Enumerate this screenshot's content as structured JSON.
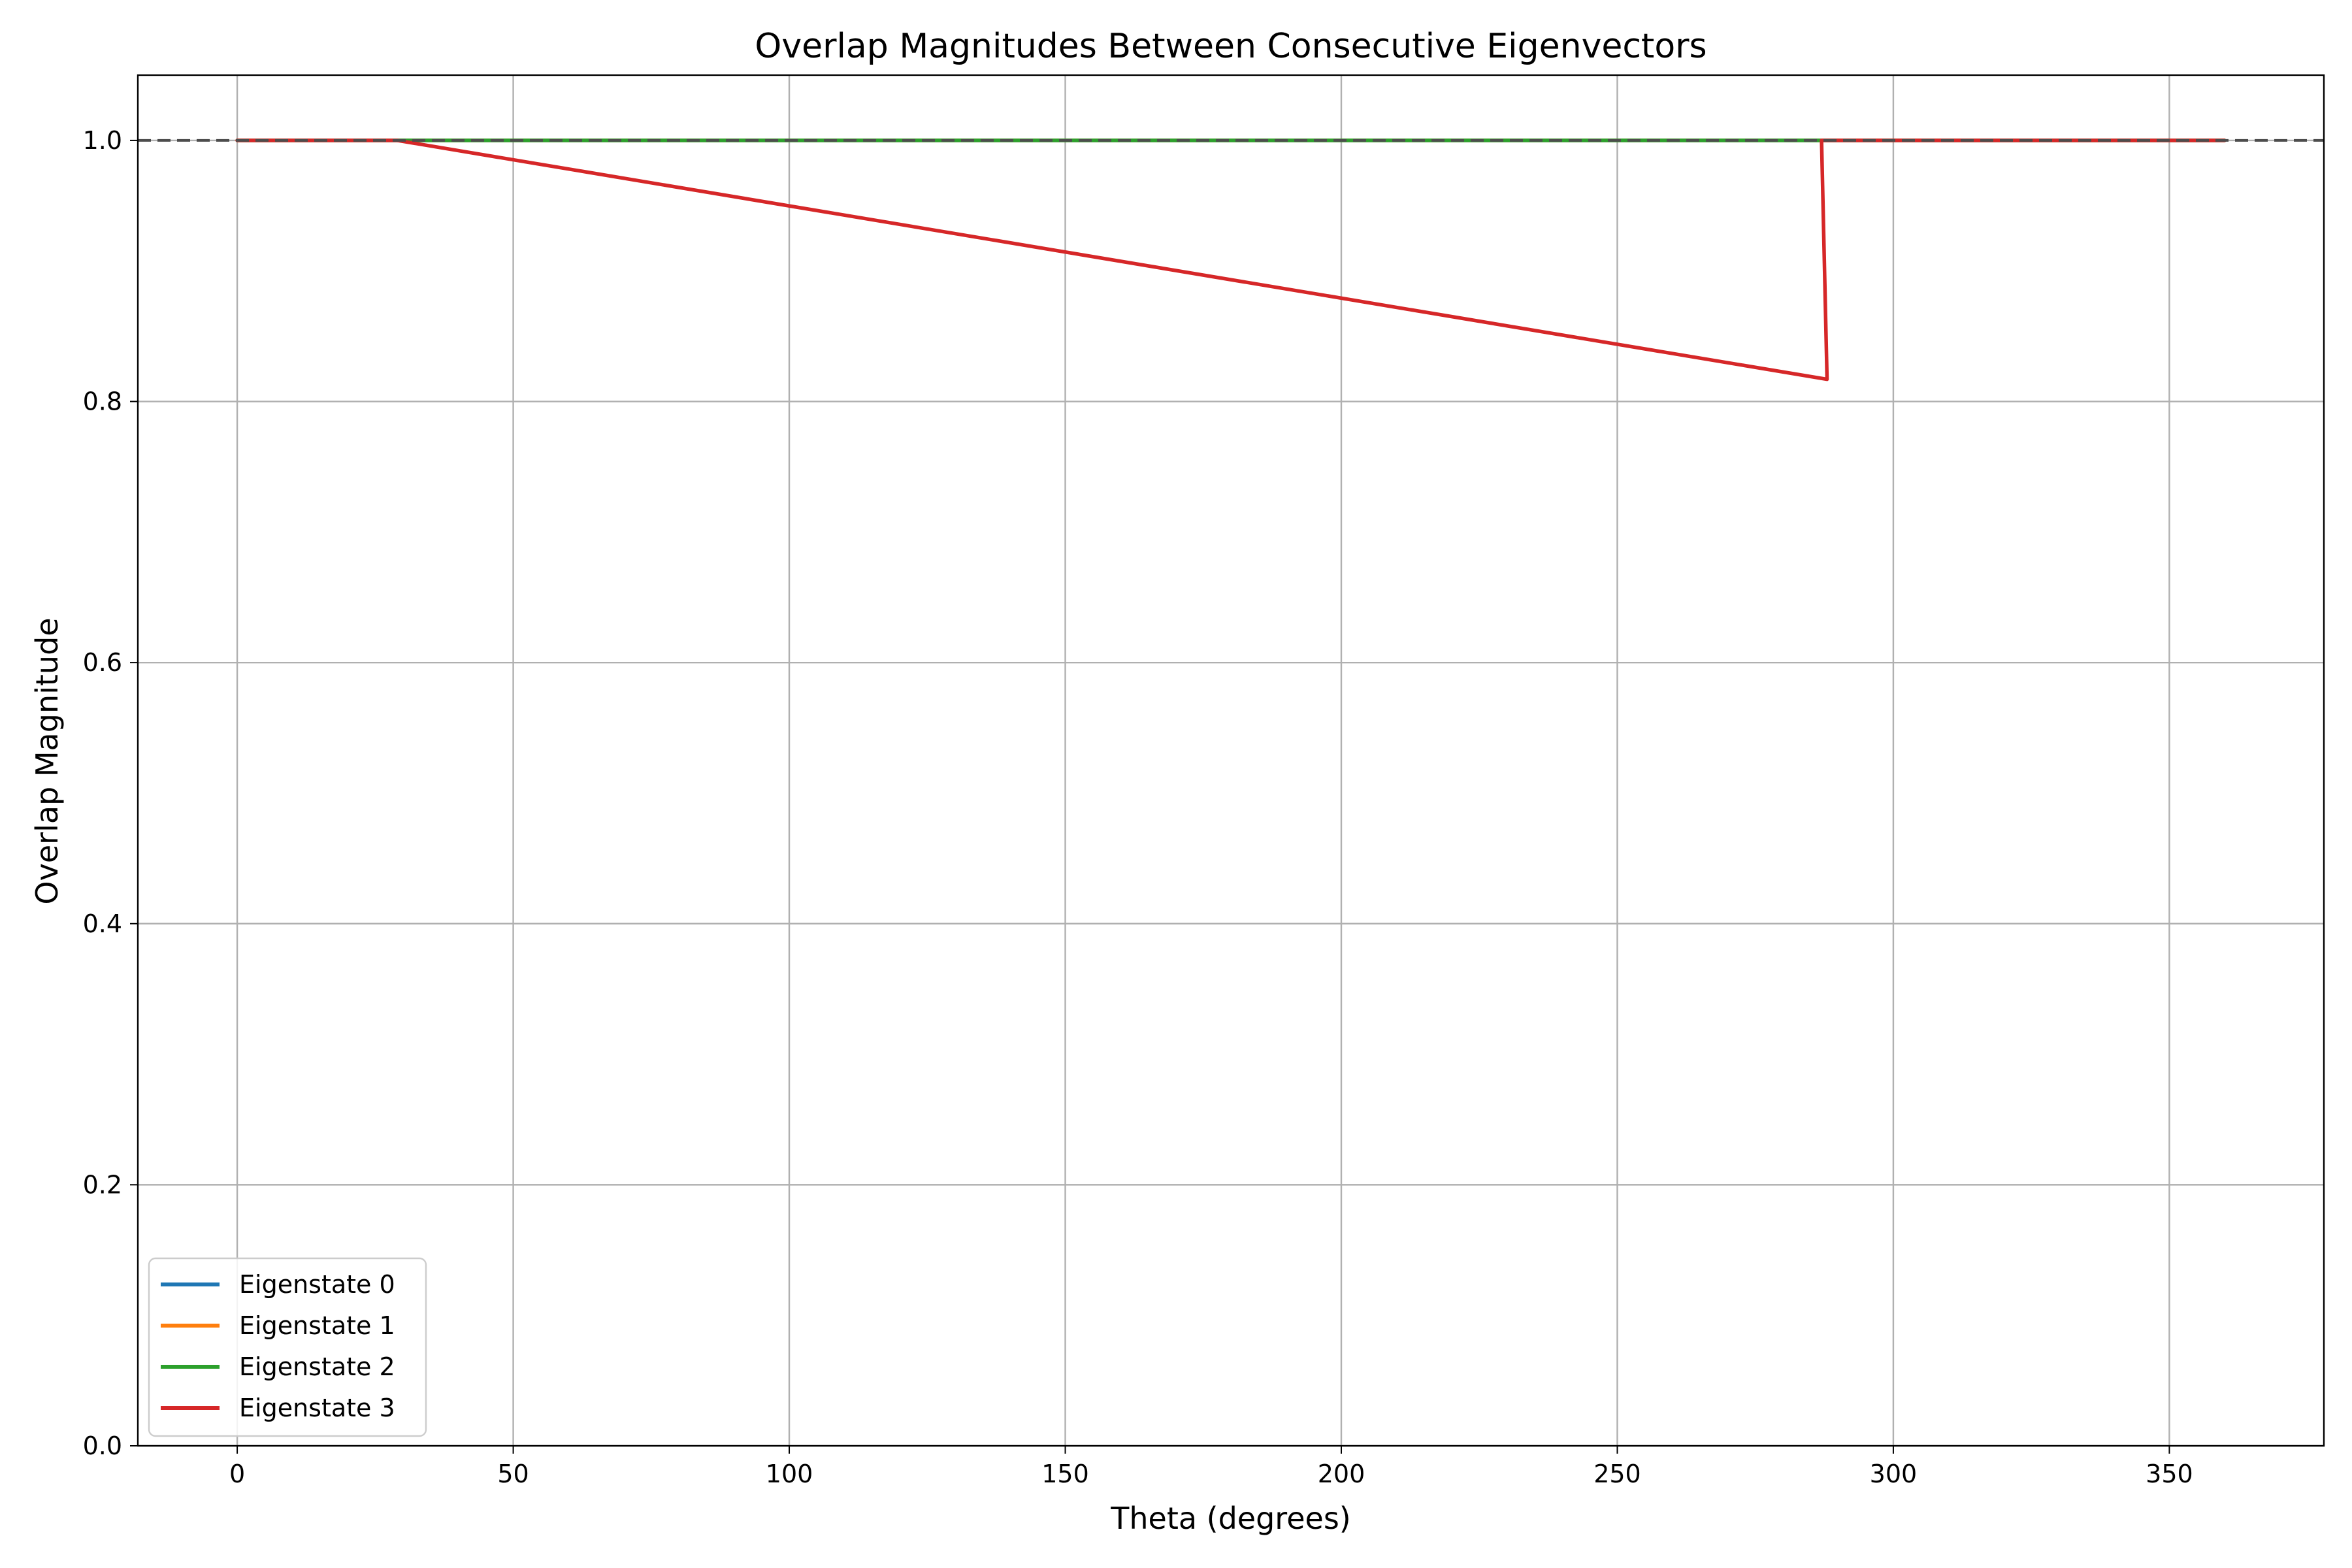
{
  "chart_data": {
    "type": "line",
    "title": "Overlap Magnitudes Between Consecutive Eigenvectors",
    "xlabel": "Theta (degrees)",
    "ylabel": "Overlap Magnitude",
    "xlim": [
      -18,
      378
    ],
    "ylim": [
      0.0,
      1.05
    ],
    "xticks": [
      0,
      50,
      100,
      150,
      200,
      250,
      300,
      350
    ],
    "xtick_labels": [
      "0",
      "50",
      "100",
      "150",
      "200",
      "250",
      "300",
      "350"
    ],
    "yticks": [
      0.0,
      0.2,
      0.4,
      0.6,
      0.8,
      1.0
    ],
    "ytick_labels": [
      "0.0",
      "0.2",
      "0.4",
      "0.6",
      "0.8",
      "1.0"
    ],
    "grid": true,
    "legend_position": "lower-left",
    "reference_line": {
      "y": 1.0,
      "style": "dashed",
      "color": "#4d4d4d"
    },
    "series": [
      {
        "name": "Eigenstate 0",
        "color": "#1f77b4",
        "x": [
          0,
          360
        ],
        "y": [
          1.0,
          1.0
        ]
      },
      {
        "name": "Eigenstate 1",
        "color": "#ff7f0e",
        "x": [
          0,
          360
        ],
        "y": [
          1.0,
          1.0
        ]
      },
      {
        "name": "Eigenstate 2",
        "color": "#2ca02c",
        "x": [
          0,
          360
        ],
        "y": [
          1.0,
          1.0
        ]
      },
      {
        "name": "Eigenstate 3",
        "color": "#d62728",
        "x": [
          0,
          29,
          288,
          287,
          288,
          289,
          360
        ],
        "y": [
          1.0,
          1.0,
          0.817,
          1.0,
          1.0,
          1.0,
          1.0
        ]
      }
    ]
  }
}
